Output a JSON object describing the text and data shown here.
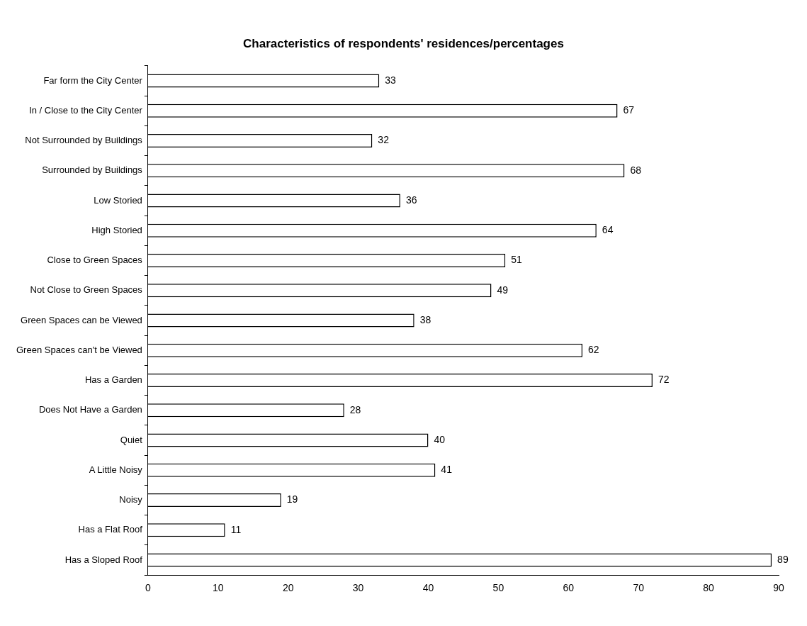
{
  "chart_data": {
    "type": "bar",
    "orientation": "horizontal",
    "title": "Characteristics of respondents' residences/percentages",
    "categories": [
      "Far form the City Center",
      "In / Close to the City Center",
      "Not Surrounded by Buildings",
      "Surrounded by Buildings",
      "Low Storied",
      "High Storied",
      "Close to Green Spaces",
      "Not Close to Green Spaces",
      "Green Spaces can be Viewed",
      "Green Spaces can't be Viewed",
      "Has a Garden",
      "Does Not Have a Garden",
      "Quiet",
      "A Little Noisy",
      "Noisy",
      "Has a Flat Roof",
      "Has a Sloped Roof"
    ],
    "values": [
      33,
      67,
      32,
      68,
      36,
      64,
      51,
      49,
      38,
      62,
      72,
      28,
      40,
      41,
      19,
      11,
      89
    ],
    "color": "#ffffff",
    "xlim": [
      0,
      90
    ],
    "xticks": [
      0,
      10,
      20,
      30,
      40,
      50,
      60,
      70,
      80,
      90
    ],
    "grid": false,
    "legend": false,
    "data_labels": true
  }
}
